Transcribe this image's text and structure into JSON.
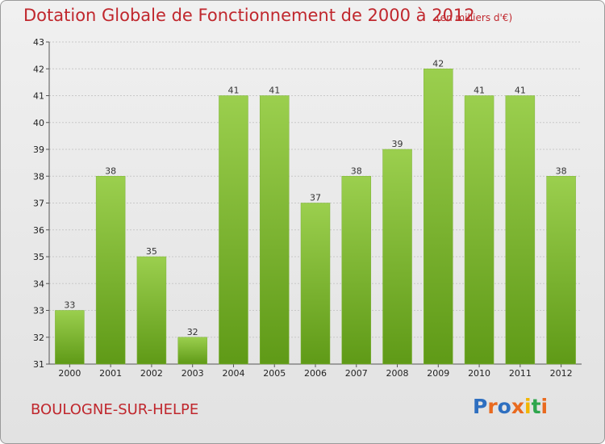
{
  "title": "Dotation Globale de Fonctionnement de 2000 à 2012",
  "subtitle": "(en milliers d'€)",
  "footer": {
    "city": "BOULOGNE-SUR-HELPE",
    "logo_text": "Proxiti"
  },
  "colors": {
    "title": "#c0272d",
    "bar_light": "#9bcf4e",
    "bar_dark": "#5f9a17",
    "logo": [
      "#2e6fc0",
      "#e96a1f",
      "#2e6fc0",
      "#e96a1f",
      "#f2b600",
      "#2ea64d",
      "#e96a1f"
    ]
  },
  "chart_data": {
    "type": "bar",
    "title": "Dotation Globale de Fonctionnement de 2000 à 2012",
    "unit_label": "(en milliers d'€)",
    "categories": [
      "2000",
      "2001",
      "2002",
      "2003",
      "2004",
      "2005",
      "2006",
      "2007",
      "2008",
      "2009",
      "2010",
      "2011",
      "2012"
    ],
    "values": [
      33,
      38,
      35,
      32,
      41,
      41,
      37,
      38,
      39,
      42,
      41,
      41,
      38
    ],
    "ylim": [
      31,
      43
    ],
    "yticks": [
      31,
      32,
      33,
      34,
      35,
      36,
      37,
      38,
      39,
      40,
      41,
      42,
      43
    ],
    "grid": "horizontal",
    "xlabel": "",
    "ylabel": ""
  }
}
